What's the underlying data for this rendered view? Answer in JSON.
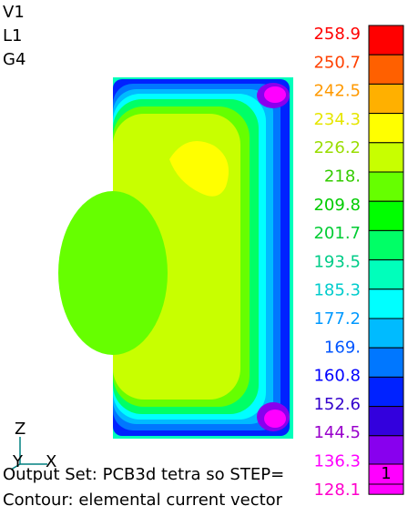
{
  "view": {
    "labels": [
      "V1",
      "L1",
      "G4"
    ]
  },
  "legend": {
    "labels": [
      {
        "text": "258.9",
        "color": "#ff0000"
      },
      {
        "text": "250.7",
        "color": "#ff4000"
      },
      {
        "text": "242.5",
        "color": "#ff9900"
      },
      {
        "text": "234.3",
        "color": "#e6e600"
      },
      {
        "text": "226.2",
        "color": "#99dd00"
      },
      {
        "text": "218.",
        "color": "#33cc00"
      },
      {
        "text": "209.8",
        "color": "#00cc00"
      },
      {
        "text": "201.7",
        "color": "#00cc33"
      },
      {
        "text": "193.5",
        "color": "#00cc88"
      },
      {
        "text": "185.3",
        "color": "#00cccc"
      },
      {
        "text": "177.2",
        "color": "#0099ff"
      },
      {
        "text": "169.",
        "color": "#0055ff"
      },
      {
        "text": "160.8",
        "color": "#0000ff"
      },
      {
        "text": "152.6",
        "color": "#3300cc"
      },
      {
        "text": "144.5",
        "color": "#9900cc"
      },
      {
        "text": "136.3",
        "color": "#ff00ff"
      },
      {
        "text": "128.1",
        "color": "#ff00cc"
      }
    ],
    "box_colors": [
      "#ff0000",
      "#ff6000",
      "#ffb000",
      "#ffff00",
      "#c8ff00",
      "#66ff00",
      "#00ff00",
      "#00ff66",
      "#00ffbb",
      "#00ffff",
      "#00bbff",
      "#0077ff",
      "#0022ff",
      "#3300dd",
      "#8800ee",
      "#ff00ff"
    ]
  },
  "triad": {
    "z": "Z",
    "y": "Y",
    "x": "X"
  },
  "footer": {
    "output_set": "Output Set:  PCB3d tetra so STEP=",
    "step": "1",
    "contour": "Contour:  elemental current vector"
  }
}
